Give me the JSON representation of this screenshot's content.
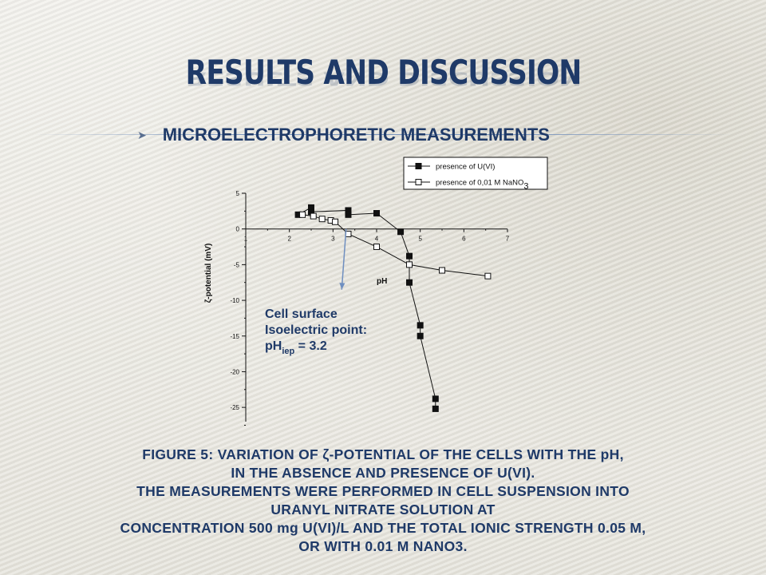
{
  "slide": {
    "title": "RESULTS AND DISCUSSION",
    "bullet": "MICROELECTROPHORETIC MEASUREMENTS",
    "caption_lines": [
      "FIGURE 5: VARIATION OF ζ-POTENTIAL OF THE CELLS WITH THE pH,",
      "IN THE ABSENCE AND PRESENCE OF U(VI).",
      "THE MEASUREMENTS WERE PERFORMED IN CELL SUSPENSION INTO",
      "URANYL NITRATE SOLUTION AT",
      "CONCENTRATION 500 mg U(VI)/L AND THE TOTAL IONIC STRENGTH 0.05 M,",
      "OR WITH 0.01 M NANO3."
    ]
  },
  "colors": {
    "title": "#1f3a68",
    "annotation_arrow": "#6f8fc0",
    "series": "#111111"
  },
  "icons": {
    "bullet": "chevron-right-icon"
  },
  "chart_data": {
    "type": "scatter",
    "xlabel": "pH",
    "ylabel": "ζ-potential (mV)",
    "xlim": [
      1,
      7
    ],
    "ylim": [
      -27,
      5
    ],
    "x_ticks": [
      "1",
      "2",
      "3",
      "4",
      "5",
      "6",
      "7"
    ],
    "y_ticks": [
      "5",
      "0",
      "-5",
      "-10",
      "-15",
      "-20",
      "-25"
    ],
    "legend_position": "top-right",
    "series": [
      {
        "name": "presence of U(VI)",
        "marker": "filled-square",
        "x": [
          2.2,
          2.5,
          2.5,
          3.35,
          3.35,
          4.0,
          4.55,
          4.75,
          4.75,
          5.0,
          5.0,
          5.35,
          5.35
        ],
        "y": [
          2.0,
          3.0,
          2.4,
          2.6,
          2.0,
          2.2,
          -0.4,
          -3.8,
          -7.5,
          -13.5,
          -15.0,
          -23.8,
          -25.2
        ]
      },
      {
        "name": "presence of  0,01 M NaNO",
        "name_subscript": "3",
        "marker": "open-square",
        "x": [
          2.3,
          2.55,
          2.75,
          2.95,
          3.05,
          3.35,
          4.0,
          4.75,
          5.5,
          6.55
        ],
        "y": [
          2.0,
          1.8,
          1.4,
          1.2,
          1.0,
          -0.7,
          -2.5,
          -5.0,
          -5.8,
          -6.6
        ]
      }
    ],
    "annotation": {
      "lines": [
        "Cell surface",
        "Isoelectric point:"
      ],
      "value_prefix": "pH",
      "value_sub": "iep",
      "value_suffix": " = 3.2",
      "arrow_target": {
        "x": 3.2,
        "y": -8.5
      },
      "arrow_origin": {
        "x": 3.3,
        "y": 0.0
      }
    }
  }
}
